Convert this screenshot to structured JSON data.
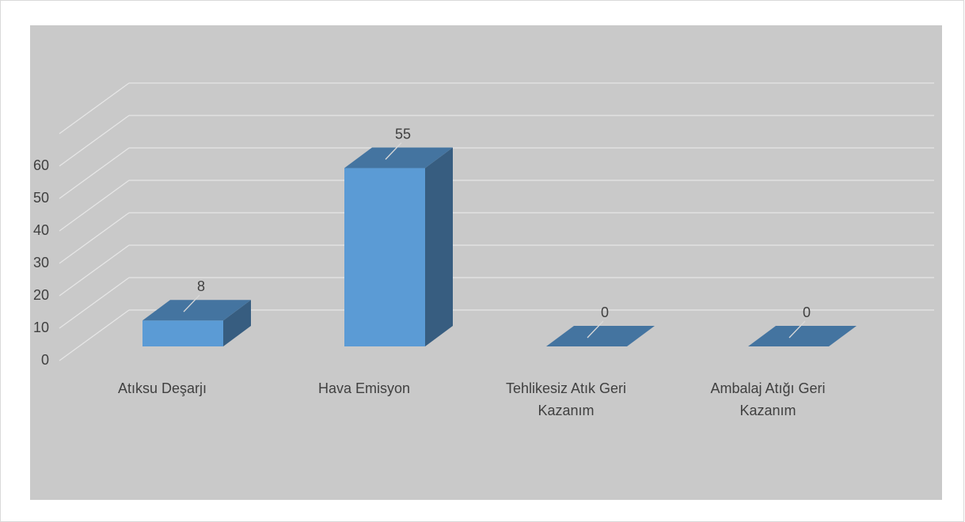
{
  "chart_data": {
    "type": "bar3d",
    "categories": [
      "Atıksu Deşarjı",
      "Hava Emisyon",
      "Tehlikesiz Atık Geri Kazanım",
      "Ambalaj Atığı Geri Kazanım"
    ],
    "values": [
      8,
      55,
      0,
      0
    ],
    "color": "#5b9bd5",
    "ylim": [
      0,
      70
    ],
    "yticks": [
      0,
      10,
      20,
      30,
      40,
      50,
      60
    ],
    "grid": true
  }
}
